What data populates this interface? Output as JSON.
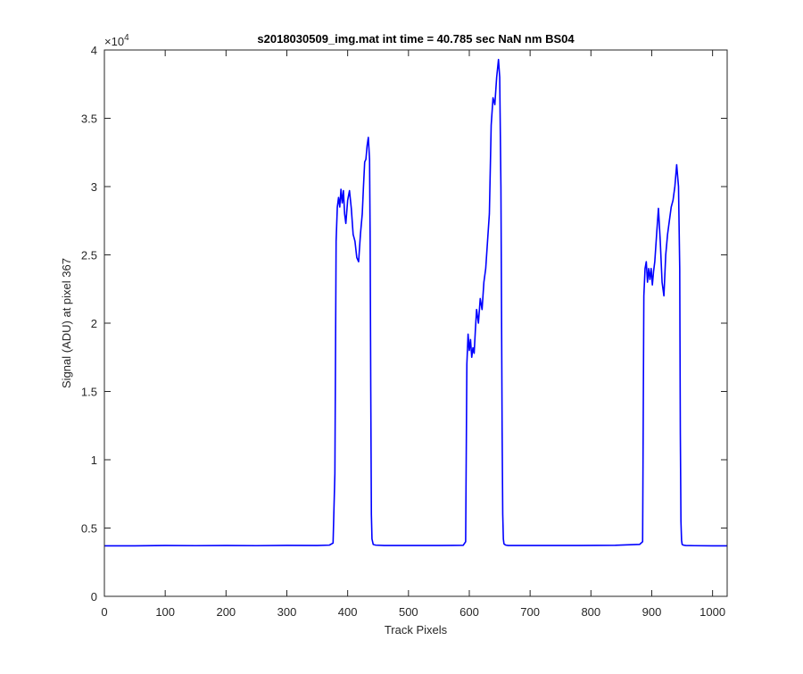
{
  "chart_data": {
    "type": "line",
    "title": "s2018030509_img.mat int time = 40.785 sec  NaN nm BS04",
    "xlabel": "Track Pixels",
    "ylabel": "Signal (ADU) at pixel 367",
    "xlim": [
      0,
      1024
    ],
    "ylim": [
      0,
      40000
    ],
    "y_exponent_label": "×10",
    "y_exponent_power": "4",
    "xticks": [
      0,
      100,
      200,
      300,
      400,
      500,
      600,
      700,
      800,
      900,
      1000
    ],
    "xtick_labels": [
      "0",
      "100",
      "200",
      "300",
      "400",
      "500",
      "600",
      "700",
      "800",
      "900",
      "1000"
    ],
    "yticks": [
      0,
      5000,
      10000,
      15000,
      20000,
      25000,
      30000,
      35000,
      40000
    ],
    "ytick_labels": [
      "0",
      "0.5",
      "1",
      "1.5",
      "2",
      "2.5",
      "3",
      "3.5",
      "4"
    ],
    "grid": false,
    "line_color": "#0000ff",
    "series": [
      {
        "x": [
          0,
          50,
          100,
          150,
          200,
          250,
          300,
          350,
          370,
          376,
          379,
          381,
          383,
          385,
          387,
          389,
          391,
          393,
          395,
          397,
          400,
          403,
          406,
          409,
          412,
          415,
          418,
          421,
          424,
          426,
          428,
          430,
          432,
          434,
          436,
          437,
          438,
          439,
          440,
          442,
          446,
          460,
          500,
          550,
          590,
          594,
          596,
          598,
          600,
          602,
          604,
          606,
          608,
          610,
          612,
          615,
          618,
          621,
          624,
          627,
          630,
          633,
          636,
          639,
          642,
          645,
          648,
          650,
          652,
          654,
          655,
          656,
          657,
          658,
          660,
          664,
          680,
          720,
          780,
          840,
          880,
          885,
          887,
          889,
          891,
          893,
          895,
          897,
          899,
          901,
          903,
          905,
          908,
          911,
          914,
          917,
          920,
          923,
          926,
          929,
          932,
          935,
          938,
          941,
          944,
          946,
          947,
          948,
          949,
          950,
          952,
          956,
          970,
          1000,
          1024
        ],
        "y": [
          3700,
          3700,
          3720,
          3710,
          3720,
          3710,
          3730,
          3720,
          3750,
          3900,
          9000,
          26000,
          28500,
          29200,
          28500,
          29800,
          28800,
          29700,
          28000,
          27300,
          29000,
          29700,
          28400,
          26500,
          26000,
          24800,
          24500,
          26500,
          28000,
          30000,
          31800,
          32000,
          33000,
          33600,
          32000,
          26000,
          15000,
          6000,
          4200,
          3800,
          3750,
          3720,
          3720,
          3720,
          3740,
          4000,
          17000,
          19200,
          18000,
          18800,
          17500,
          18200,
          17800,
          19500,
          21000,
          20000,
          21800,
          21000,
          23000,
          24000,
          26000,
          28000,
          34500,
          36500,
          36000,
          38000,
          39300,
          38000,
          30000,
          12000,
          6000,
          4200,
          3850,
          3800,
          3750,
          3720,
          3720,
          3720,
          3720,
          3740,
          3800,
          4000,
          22000,
          24000,
          24500,
          23000,
          24000,
          23200,
          24000,
          22800,
          23800,
          24500,
          26500,
          28400,
          26000,
          23000,
          22000,
          25000,
          26500,
          27500,
          28500,
          29000,
          30000,
          31600,
          30000,
          24000,
          12000,
          5500,
          4100,
          3800,
          3750,
          3720,
          3710,
          3700,
          3700
        ]
      }
    ]
  }
}
